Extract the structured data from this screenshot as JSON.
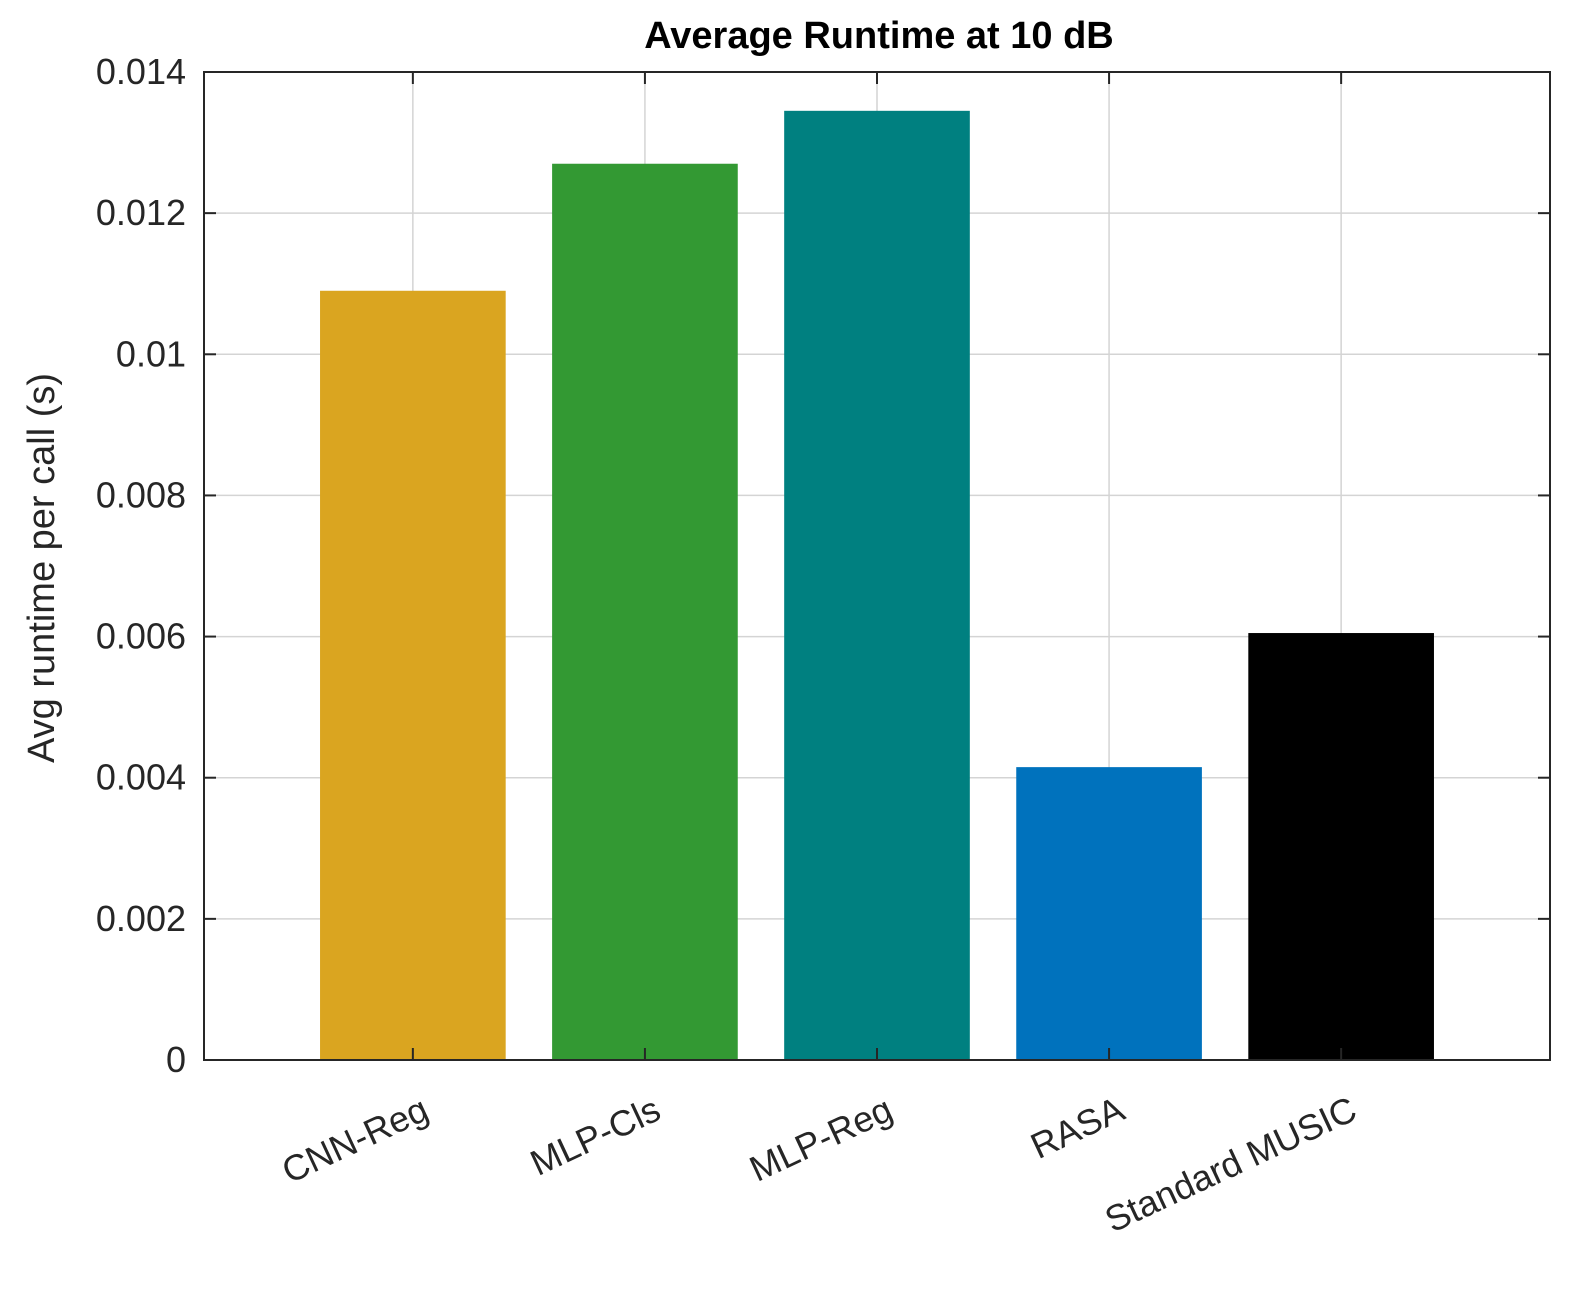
{
  "chart_data": {
    "type": "bar",
    "title": "Average Runtime at 10 dB",
    "xlabel": "",
    "ylabel": "Avg runtime per call (s)",
    "categories": [
      "CNN-Reg",
      "MLP-Cls",
      "MLP-Reg",
      "RASA",
      "Standard MUSIC"
    ],
    "values": [
      0.0109,
      0.0127,
      0.01345,
      0.00415,
      0.00605
    ],
    "colors": [
      "#DAA520",
      "#339933",
      "#008080",
      "#0072BD",
      "#000000"
    ],
    "ylim": [
      0,
      0.014
    ],
    "yticks": [
      0,
      0.002,
      0.004,
      0.006,
      0.008,
      0.01,
      0.012,
      0.014
    ],
    "ytick_labels": [
      "0",
      "0.002",
      "0.004",
      "0.006",
      "0.008",
      "0.01",
      "0.012",
      "0.014"
    ],
    "grid": true,
    "legend": "none"
  }
}
